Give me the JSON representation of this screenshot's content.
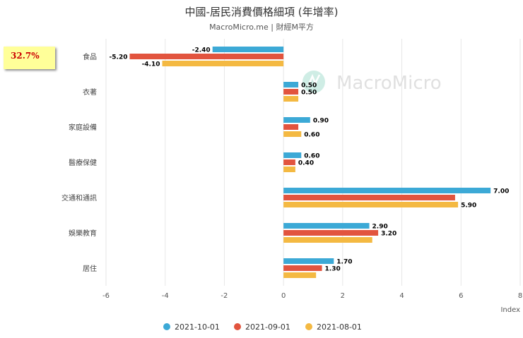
{
  "chart_data": {
    "type": "bar",
    "orientation": "horizontal",
    "title": "中國-居民消費價格細項 (年增率)",
    "subtitle": "MacroMicro.me | 財經M平方",
    "categories": [
      "食品",
      "衣著",
      "家庭設備",
      "醫療保健",
      "交通和通訊",
      "娛樂教育",
      "居住"
    ],
    "series": [
      {
        "name": "2021-10-01",
        "color": "#3ca9d6",
        "values": [
          -2.4,
          0.5,
          0.9,
          0.6,
          7.0,
          2.9,
          1.7
        ],
        "labels": [
          "-2.40",
          "0.50",
          "0.90",
          "0.60",
          "7.00",
          "2.90",
          "1.70"
        ]
      },
      {
        "name": "2021-09-01",
        "color": "#e2543e",
        "values": [
          -5.2,
          0.5,
          0.5,
          0.4,
          5.8,
          3.2,
          1.3
        ],
        "labels": [
          "-5.20",
          "0.50",
          "",
          "0.40",
          "",
          "3.20",
          "1.30"
        ]
      },
      {
        "name": "2021-08-01",
        "color": "#f4b942",
        "values": [
          -4.1,
          0.5,
          0.6,
          0.4,
          5.9,
          3.0,
          1.1
        ],
        "labels": [
          "-4.10",
          "",
          "0.60",
          "",
          "5.90",
          "",
          ""
        ]
      }
    ],
    "xlim": [
      -6,
      8
    ],
    "xticks": [
      -6,
      -4,
      -2,
      0,
      2,
      4,
      6,
      8
    ],
    "xlabel": "Index",
    "grid": true,
    "legend": "bottom-center"
  },
  "badge": {
    "text": "32.7%"
  },
  "watermark": {
    "text": "MacroMicro"
  }
}
